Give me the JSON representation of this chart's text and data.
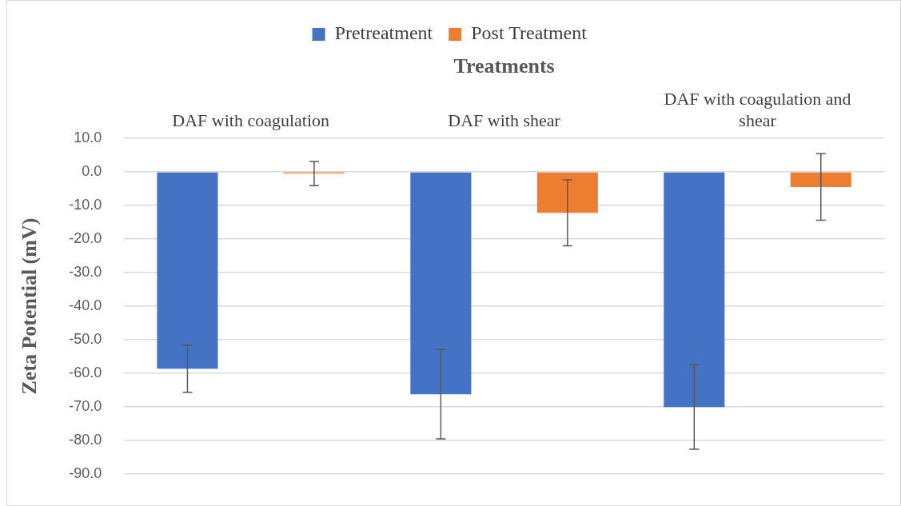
{
  "chart_data": {
    "type": "bar",
    "xlabel": "Treatments",
    "ylabel": "Zeta Potential (mV)",
    "categories": [
      "DAF with coagulation",
      "DAF with shear",
      "DAF with coagulation and shear"
    ],
    "series": [
      {
        "name": "Pretreatment",
        "color": "#4472c4",
        "values": [
          -58.6,
          -66.2,
          -70.0
        ],
        "errors": [
          7.0,
          13.3,
          12.6
        ]
      },
      {
        "name": "Post Treatment",
        "color": "#ed7d31",
        "values": [
          -0.5,
          -12.2,
          -4.5
        ],
        "errors": [
          3.6,
          9.8,
          9.9
        ]
      }
    ],
    "ylim": [
      -90,
      10
    ],
    "yticks": [
      {
        "value": -90,
        "label": "-90.0"
      },
      {
        "value": -80,
        "label": "-80.0"
      },
      {
        "value": -70,
        "label": "-70.0"
      },
      {
        "value": -60,
        "label": "-60.0"
      },
      {
        "value": -50,
        "label": "-50.0"
      },
      {
        "value": -40,
        "label": "-40.0"
      },
      {
        "value": -30,
        "label": "-30.0"
      },
      {
        "value": -20,
        "label": "-20.0"
      },
      {
        "value": -10,
        "label": "-10.0"
      },
      {
        "value": 0,
        "label": "0.0"
      },
      {
        "value": 10,
        "label": "10.0"
      }
    ],
    "grid": "y",
    "legend": "top"
  }
}
